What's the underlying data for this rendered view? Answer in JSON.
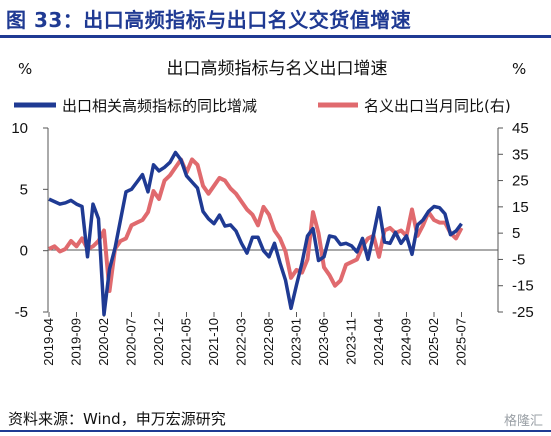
{
  "figure_title": "图 33：出口高频指标与出口名义交货值增速",
  "source_note": "资料来源：Wind，申万宏源研究",
  "watermark": "格隆汇",
  "colors": {
    "title": "#1f3a93",
    "series_left": "#1f3a93",
    "series_right": "#e06a6e",
    "axis": "#555555"
  },
  "chart_data": {
    "type": "line",
    "title": "出口高频指标与名义出口增速",
    "unit_left": "%",
    "unit_right": "%",
    "legend_position": "top",
    "grid": false,
    "x_tick_labels": [
      "2019-04",
      "2019-09",
      "2020-02",
      "2020-07",
      "2020-12",
      "2021-05",
      "2021-10",
      "2022-03",
      "2022-08",
      "2023-01",
      "2023-06",
      "2023-11",
      "2024-04",
      "2024-09",
      "2025-02",
      "2025-07"
    ],
    "y_left": {
      "ticks": [
        "10",
        "5",
        "0",
        "-5"
      ],
      "ylim": [
        -5,
        10
      ]
    },
    "y_right": {
      "ticks": [
        "45",
        "35",
        "25",
        "15",
        "5",
        "-5",
        "-15",
        "-25"
      ],
      "ylim": [
        -25,
        45
      ]
    },
    "series": [
      {
        "name": "出口相关高频指标的同比增减",
        "axis": "left",
        "start": "2019-04",
        "values": [
          4.2,
          4.0,
          3.8,
          3.9,
          4.1,
          3.8,
          3.6,
          -0.5,
          3.8,
          2.6,
          -5.2,
          -1.5,
          0.2,
          2.5,
          4.8,
          5.0,
          5.6,
          6.2,
          4.8,
          7.0,
          6.5,
          6.8,
          7.2,
          8.0,
          7.4,
          6.1,
          5.6,
          5.1,
          3.2,
          2.6,
          2.2,
          2.9,
          2.0,
          2.1,
          1.6,
          0.6,
          -0.2,
          1.1,
          1.1,
          0.0,
          -0.5,
          0.6,
          -1.0,
          -2.4,
          -4.7,
          -2.8,
          -1.0,
          1.2,
          1.8,
          -0.8,
          -0.5,
          1.2,
          1.1,
          0.5,
          0.6,
          0.4,
          -0.1,
          1.0,
          -0.7,
          1.3,
          3.5,
          0.7,
          0.6,
          1.5,
          0.6,
          1.2,
          -0.3,
          2.1,
          2.5,
          3.2,
          3.6,
          3.5,
          3.0,
          1.3,
          1.6,
          2.2
        ]
      },
      {
        "name": "名义出口当月同比(右)",
        "axis": "right",
        "start": "2019-04",
        "values": [
          -1,
          0,
          -2,
          -1,
          2,
          0,
          3,
          -1,
          0,
          2,
          6,
          -17,
          -1,
          2,
          3,
          8,
          9,
          10,
          13,
          21,
          18,
          25,
          27,
          30,
          33,
          28,
          33,
          31,
          23,
          20,
          23,
          26,
          25,
          22,
          20,
          17,
          14,
          12,
          8,
          15,
          12,
          6,
          3,
          -2,
          -12,
          -9,
          -10,
          -5,
          13,
          5,
          -8,
          -11,
          -15,
          -13,
          -7,
          -6,
          -5,
          0,
          3,
          4,
          -4,
          6,
          7,
          5,
          6,
          4,
          14,
          4,
          8,
          13,
          10,
          9,
          9,
          5,
          3,
          7
        ]
      }
    ]
  }
}
